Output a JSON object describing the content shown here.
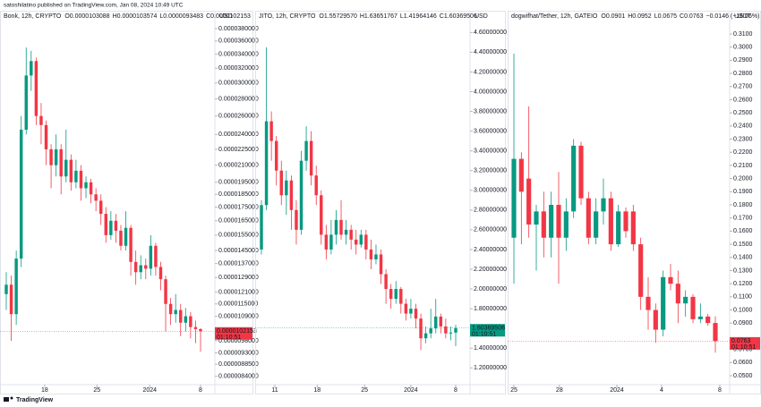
{
  "page": {
    "byline": "satoshilatino published on TradingView.com, Jan 08, 2024 10:49 UTC",
    "brand": "TradingView"
  },
  "chart_data": [
    {
      "type": "candlestick",
      "title": "Bonk, 12h, CRYPTO",
      "legend": [
        "O0.0000103088",
        "H0.0000103574",
        "L0.0000093483",
        "C0.0000102153"
      ],
      "legend_color": "#f23645",
      "currency": "USD",
      "log_scale": true,
      "up_color": "#089981",
      "down_color": "#f23645",
      "ylim": [
        8.1e-06,
        3.95e-05
      ],
      "yticks": [
        {
          "value": 3.8e-05,
          "label": "0.0000380000"
        },
        {
          "value": 3.6e-05,
          "label": "0.0000360000"
        },
        {
          "value": 3.4e-05,
          "label": "0.0000340000"
        },
        {
          "value": 3.2e-05,
          "label": "0.0000320000"
        },
        {
          "value": 3e-05,
          "label": "0.0000300000"
        },
        {
          "value": 2.8e-05,
          "label": "0.0000280000"
        },
        {
          "value": 2.6e-05,
          "label": "0.0000260000"
        },
        {
          "value": 2.4e-05,
          "label": "0.0000240000"
        },
        {
          "value": 2.25e-05,
          "label": "0.0000225000"
        },
        {
          "value": 2.1e-05,
          "label": "0.0000210000"
        },
        {
          "value": 1.95e-05,
          "label": "0.0000195000"
        },
        {
          "value": 1.85e-05,
          "label": "0.0000185000"
        },
        {
          "value": 1.75e-05,
          "label": "0.0000175000"
        },
        {
          "value": 1.65e-05,
          "label": "0.0000165000"
        },
        {
          "value": 1.55e-05,
          "label": "0.0000155000"
        },
        {
          "value": 1.45e-05,
          "label": "0.0000145000"
        },
        {
          "value": 1.37e-05,
          "label": "0.0000137000"
        },
        {
          "value": 1.29e-05,
          "label": "0.0000129000"
        },
        {
          "value": 1.21e-05,
          "label": "0.0000121000"
        },
        {
          "value": 1.15e-05,
          "label": "0.0000115000"
        },
        {
          "value": 1.09e-05,
          "label": "0.0000109000"
        },
        {
          "value": 9.8e-06,
          "label": "0.0000098000"
        },
        {
          "value": 9.3e-06,
          "label": "0.0000093000"
        },
        {
          "value": 8.85e-06,
          "label": "0.0000088500"
        },
        {
          "value": 8.4e-06,
          "label": "0.0000084000"
        }
      ],
      "xticks": [
        {
          "value": 7.7,
          "label": "18"
        },
        {
          "value": 18.2,
          "label": "25"
        },
        {
          "value": 28.8,
          "label": "2024"
        },
        {
          "value": 39,
          "label": "8"
        }
      ],
      "last_label": "0.0000102153",
      "countdown": "01:10:51",
      "open": [
        1.2e-05,
        1.25e-05,
        1.1e-05,
        1.4e-05,
        2.45e-05,
        3.1e-05,
        3.3e-05,
        2.6e-05,
        2.5e-05,
        2.25e-05,
        2.1e-05,
        2.25e-05,
        2e-05,
        2.15e-05,
        1.95e-05,
        2.05e-05,
        1.9e-05,
        1.95e-05,
        1.85e-05,
        1.8e-05,
        1.7e-05,
        1.55e-05,
        1.65e-05,
        1.58e-05,
        1.48e-05,
        1.6e-05,
        1.38e-05,
        1.32e-05,
        1.36e-05,
        1.34e-05,
        1.48e-05,
        1.35e-05,
        1.28e-05,
        1.15e-05,
        1.1e-05,
        1.12e-05,
        1.06e-05,
        1.09e-05,
        1.04e-05,
        1.03088e-05
      ],
      "high": [
        1.32e-05,
        1.3e-05,
        1.45e-05,
        2.6e-05,
        3.5e-05,
        3.45e-05,
        3.35e-05,
        2.75e-05,
        2.55e-05,
        2.3e-05,
        2.4e-05,
        2.3e-05,
        2.45e-05,
        2.2e-05,
        2.15e-05,
        2.1e-05,
        2e-05,
        1.98e-05,
        1.9e-05,
        1.85e-05,
        1.75e-05,
        1.72e-05,
        1.7e-05,
        1.62e-05,
        1.72e-05,
        1.62e-05,
        1.45e-05,
        1.42e-05,
        1.4e-05,
        1.55e-05,
        1.5e-05,
        1.38e-05,
        1.3e-05,
        1.18e-05,
        1.2e-05,
        1.15e-05,
        1.13e-05,
        1.11e-05,
        1.07e-05,
        1.03574e-05
      ],
      "low": [
        1.12e-05,
        9.8e-06,
        1.05e-05,
        1.35e-05,
        2.4e-05,
        2.9e-05,
        2.5e-05,
        2.3e-05,
        2.1e-05,
        1.9e-05,
        2e-05,
        1.85e-05,
        1.95e-05,
        1.88e-05,
        1.9e-05,
        1.8e-05,
        1.82e-05,
        1.78e-05,
        1.72e-05,
        1.62e-05,
        1.5e-05,
        1.52e-05,
        1.5e-05,
        1.45e-05,
        1.45e-05,
        1.3e-05,
        1.25e-05,
        1.28e-05,
        1.28e-05,
        1.3e-05,
        1.3e-05,
        1.22e-05,
        1.02e-05,
        1.05e-05,
        1.06e-05,
        1e-05,
        1.02e-05,
        9.9e-06,
        9.7e-06,
        9.3483e-06
      ],
      "close": [
        1.25e-05,
        1.1e-05,
        1.4e-05,
        2.45e-05,
        3.1e-05,
        3.3e-05,
        2.6e-05,
        2.5e-05,
        2.25e-05,
        2.1e-05,
        2.25e-05,
        2e-05,
        2.15e-05,
        1.95e-05,
        2.05e-05,
        1.9e-05,
        1.95e-05,
        1.85e-05,
        1.8e-05,
        1.7e-05,
        1.55e-05,
        1.65e-05,
        1.58e-05,
        1.48e-05,
        1.6e-05,
        1.38e-05,
        1.32e-05,
        1.36e-05,
        1.34e-05,
        1.48e-05,
        1.35e-05,
        1.28e-05,
        1.15e-05,
        1.1e-05,
        1.12e-05,
        1.06e-05,
        1.09e-05,
        1.04e-05,
        1.03088e-05,
        1.02153e-05
      ]
    },
    {
      "type": "candlestick",
      "title": "JITO, 12h, CRYPTO",
      "legend": [
        "O1.55729570",
        "H1.63651767",
        "L1.41964146",
        "C1.60369506"
      ],
      "legend_color": "#089981",
      "currency": "USD",
      "log_scale": false,
      "up_color": "#089981",
      "down_color": "#f23645",
      "ylim": [
        1.03,
        4.73
      ],
      "yticks": [
        {
          "value": 4.6,
          "label": "4.60000000"
        },
        {
          "value": 4.4,
          "label": "4.40000000"
        },
        {
          "value": 4.2,
          "label": "4.20000000"
        },
        {
          "value": 4.0,
          "label": "4.00000000"
        },
        {
          "value": 3.8,
          "label": "3.80000000"
        },
        {
          "value": 3.6,
          "label": "3.60000000"
        },
        {
          "value": 3.4,
          "label": "3.40000000"
        },
        {
          "value": 3.2,
          "label": "3.20000000"
        },
        {
          "value": 3.0,
          "label": "3.00000000"
        },
        {
          "value": 2.8,
          "label": "2.80000000"
        },
        {
          "value": 2.6,
          "label": "2.60000000"
        },
        {
          "value": 2.4,
          "label": "2.40000000"
        },
        {
          "value": 2.2,
          "label": "2.20000000"
        },
        {
          "value": 2.0,
          "label": "2.00000000"
        },
        {
          "value": 1.8,
          "label": "1.80000000"
        },
        {
          "value": 1.4,
          "label": "1.40000000"
        },
        {
          "value": 1.2,
          "label": "1.20000000"
        }
      ],
      "xticks": [
        {
          "value": 2.7,
          "label": "11"
        },
        {
          "value": 11.2,
          "label": "18"
        },
        {
          "value": 20.7,
          "label": "25"
        },
        {
          "value": 30,
          "label": "2024"
        },
        {
          "value": 39,
          "label": "8"
        }
      ],
      "last_label": "1.60369506",
      "countdown": "01:10:51",
      "open": [
        2.4,
        2.85,
        3.7,
        3.5,
        3.2,
        2.95,
        3.1,
        2.8,
        2.6,
        3.3,
        3.5,
        3.15,
        2.95,
        2.55,
        2.4,
        2.55,
        2.7,
        2.55,
        2.6,
        2.5,
        2.45,
        2.55,
        2.4,
        2.3,
        2.35,
        2.15,
        2.0,
        1.9,
        2.0,
        1.85,
        1.75,
        1.8,
        1.7,
        1.5,
        1.55,
        1.6,
        1.72,
        1.62,
        1.55,
        1.5572957
      ],
      "high": [
        2.9,
        4.45,
        3.8,
        3.55,
        3.3,
        3.2,
        3.15,
        2.9,
        3.4,
        3.65,
        3.6,
        3.25,
        3.0,
        2.65,
        2.7,
        2.8,
        2.9,
        2.7,
        2.65,
        2.6,
        2.6,
        2.6,
        2.5,
        2.45,
        2.4,
        2.2,
        2.05,
        2.08,
        2.02,
        1.9,
        1.9,
        1.85,
        1.75,
        1.62,
        1.8,
        1.9,
        1.75,
        1.7,
        1.62,
        1.63651767
      ],
      "low": [
        2.35,
        2.8,
        3.3,
        3.05,
        2.85,
        2.75,
        2.6,
        2.45,
        2.55,
        3.2,
        3.05,
        2.85,
        2.45,
        2.3,
        2.35,
        2.45,
        2.5,
        2.45,
        2.4,
        2.35,
        2.42,
        2.3,
        2.2,
        2.25,
        2.05,
        1.85,
        1.8,
        1.85,
        1.75,
        1.68,
        1.7,
        1.6,
        1.38,
        1.45,
        1.5,
        1.55,
        1.55,
        1.5,
        1.48,
        1.41964146
      ],
      "close": [
        2.85,
        3.7,
        3.5,
        3.2,
        2.95,
        3.1,
        2.8,
        2.6,
        3.3,
        3.5,
        3.15,
        2.95,
        2.55,
        2.4,
        2.55,
        2.7,
        2.55,
        2.6,
        2.5,
        2.45,
        2.55,
        2.4,
        2.3,
        2.35,
        2.15,
        2.0,
        1.9,
        2.0,
        1.85,
        1.75,
        1.8,
        1.7,
        1.5,
        1.55,
        1.6,
        1.72,
        1.62,
        1.55,
        1.5572957,
        1.60369506
      ]
    },
    {
      "type": "candlestick",
      "title": "dogwifhat/Tether, 12h, GATEIO",
      "legend": [
        "O0.0901",
        "H0.0952",
        "L0.0675",
        "C0.0763",
        "−0.0146 (−16.06%)"
      ],
      "legend_color": "#f23645",
      "currency": "USDT",
      "log_scale": false,
      "up_color": "#089981",
      "down_color": "#f23645",
      "ylim": [
        0.0432,
        0.3209
      ],
      "yticks": [
        {
          "value": 0.31,
          "label": "0.3100"
        },
        {
          "value": 0.3,
          "label": "0.3000"
        },
        {
          "value": 0.29,
          "label": "0.2900"
        },
        {
          "value": 0.28,
          "label": "0.2800"
        },
        {
          "value": 0.27,
          "label": "0.2700"
        },
        {
          "value": 0.26,
          "label": "0.2600"
        },
        {
          "value": 0.25,
          "label": "0.2500"
        },
        {
          "value": 0.24,
          "label": "0.2400"
        },
        {
          "value": 0.23,
          "label": "0.2300"
        },
        {
          "value": 0.22,
          "label": "0.2200"
        },
        {
          "value": 0.21,
          "label": "0.2100"
        },
        {
          "value": 0.2,
          "label": "0.2000"
        },
        {
          "value": 0.19,
          "label": "0.1900"
        },
        {
          "value": 0.18,
          "label": "0.1800"
        },
        {
          "value": 0.17,
          "label": "0.1700"
        },
        {
          "value": 0.16,
          "label": "0.1600"
        },
        {
          "value": 0.15,
          "label": "0.1500"
        },
        {
          "value": 0.14,
          "label": "0.1400"
        },
        {
          "value": 0.13,
          "label": "0.1300"
        },
        {
          "value": 0.12,
          "label": "0.1200"
        },
        {
          "value": 0.11,
          "label": "0.1100"
        },
        {
          "value": 0.1,
          "label": "0.1000"
        },
        {
          "value": 0.09,
          "label": "0.0900"
        },
        {
          "value": 0.07,
          "label": "0.0700"
        },
        {
          "value": 0.06,
          "label": "0.0600"
        },
        {
          "value": 0.05,
          "label": "0.0500"
        }
      ],
      "xticks": [
        {
          "value": 0,
          "label": "25"
        },
        {
          "value": 6.1,
          "label": "28"
        },
        {
          "value": 13.8,
          "label": "2024"
        },
        {
          "value": 19.8,
          "label": "4"
        },
        {
          "value": 27.6,
          "label": "8"
        }
      ],
      "last_label": "0.0763",
      "countdown": "01:10:51",
      "open": [
        0.155,
        0.215,
        0.2,
        0.165,
        0.175,
        0.155,
        0.18,
        0.155,
        0.175,
        0.225,
        0.185,
        0.155,
        0.175,
        0.185,
        0.15,
        0.175,
        0.175,
        0.15,
        0.11,
        0.1,
        0.085,
        0.125,
        0.12,
        0.105,
        0.11,
        0.093,
        0.095,
        0.0901
      ],
      "high": [
        0.295,
        0.22,
        0.255,
        0.18,
        0.19,
        0.19,
        0.205,
        0.185,
        0.23,
        0.228,
        0.19,
        0.185,
        0.2,
        0.19,
        0.18,
        0.178,
        0.18,
        0.155,
        0.125,
        0.105,
        0.13,
        0.135,
        0.13,
        0.115,
        0.112,
        0.105,
        0.097,
        0.0952
      ],
      "low": [
        0.12,
        0.15,
        0.155,
        0.13,
        0.14,
        0.14,
        0.12,
        0.145,
        0.17,
        0.18,
        0.15,
        0.15,
        0.165,
        0.145,
        0.148,
        0.155,
        0.145,
        0.1,
        0.085,
        0.075,
        0.08,
        0.115,
        0.09,
        0.095,
        0.09,
        0.09,
        0.088,
        0.0675
      ],
      "close": [
        0.215,
        0.19,
        0.165,
        0.175,
        0.155,
        0.18,
        0.155,
        0.175,
        0.225,
        0.185,
        0.155,
        0.175,
        0.185,
        0.15,
        0.175,
        0.16,
        0.15,
        0.11,
        0.1,
        0.085,
        0.125,
        0.12,
        0.105,
        0.11,
        0.093,
        0.095,
        0.0901,
        0.0763
      ]
    }
  ]
}
